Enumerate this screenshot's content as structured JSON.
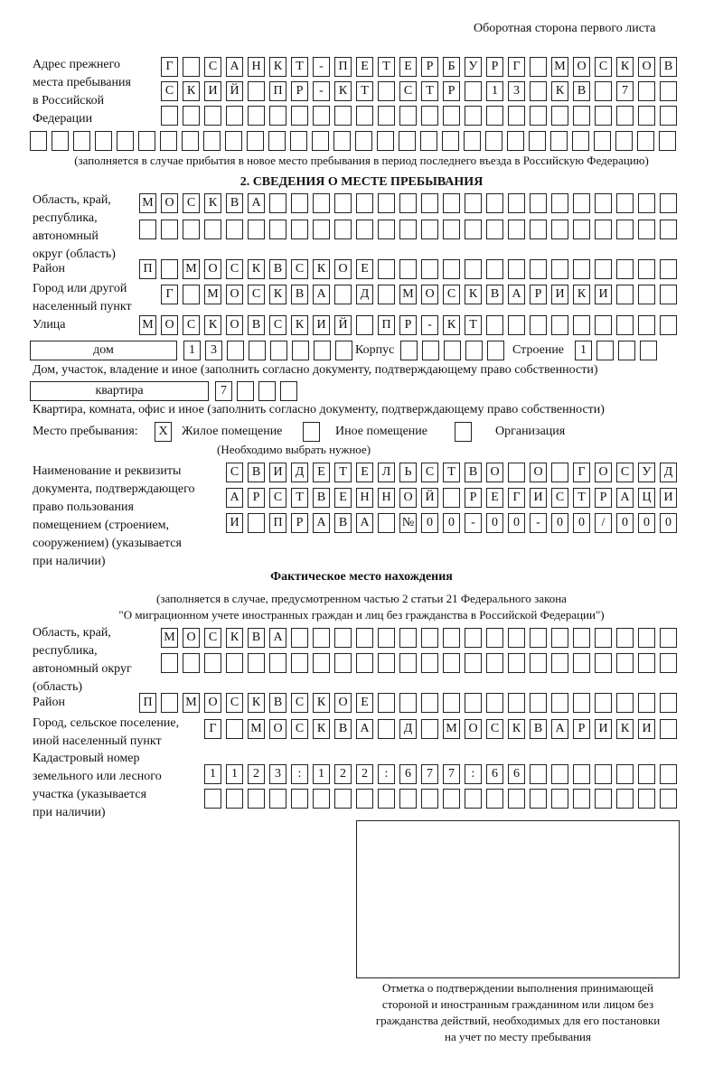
{
  "header": "Оборотная сторона первого листа",
  "prev_address": {
    "label": [
      "Адрес прежнего",
      "места пребывания",
      "в Российской",
      "Федерации"
    ],
    "rows": [
      [
        "Г",
        "",
        "С",
        "А",
        "Н",
        "К",
        "Т",
        "-",
        "П",
        "Е",
        "Т",
        "Е",
        "Р",
        "Б",
        "У",
        "Р",
        "Г",
        "",
        "М",
        "О",
        "С",
        "К",
        "О",
        "В"
      ],
      [
        "С",
        "К",
        "И",
        "Й",
        "",
        "П",
        "Р",
        "-",
        "К",
        "Т",
        "",
        "С",
        "Т",
        "Р",
        "",
        "1",
        "3",
        "",
        "К",
        "В",
        "",
        "7",
        "",
        ""
      ],
      [
        "",
        "",
        "",
        "",
        "",
        "",
        "",
        "",
        "",
        "",
        "",
        "",
        "",
        "",
        "",
        "",
        "",
        "",
        "",
        "",
        "",
        "",
        "",
        ""
      ],
      [
        "",
        "",
        "",
        "",
        "",
        "",
        "",
        "",
        "",
        "",
        "",
        "",
        "",
        "",
        "",
        "",
        "",
        "",
        "",
        "",
        "",
        "",
        "",
        "",
        "",
        "",
        "",
        "",
        "",
        ""
      ]
    ],
    "note": "(заполняется в случае прибытия в новое место пребывания в период последнего въезда в Российскую Федерацию)"
  },
  "section2": {
    "title": "2. СВЕДЕНИЯ О МЕСТЕ ПРЕБЫВАНИЯ",
    "region_label": [
      "Область, край,",
      "республика,",
      "автономный",
      "округ (область)"
    ],
    "region_rows": [
      [
        "М",
        "О",
        "С",
        "К",
        "В",
        "А",
        "",
        "",
        "",
        "",
        "",
        "",
        "",
        "",
        "",
        "",
        "",
        "",
        "",
        "",
        "",
        "",
        "",
        "",
        ""
      ],
      [
        "",
        "",
        "",
        "",
        "",
        "",
        "",
        "",
        "",
        "",
        "",
        "",
        "",
        "",
        "",
        "",
        "",
        "",
        "",
        "",
        "",
        "",
        "",
        "",
        ""
      ]
    ],
    "district_label": "Район",
    "district_row": [
      "П",
      "",
      "М",
      "О",
      "С",
      "К",
      "В",
      "С",
      "К",
      "О",
      "Е",
      "",
      "",
      "",
      "",
      "",
      "",
      "",
      "",
      "",
      "",
      "",
      "",
      "",
      ""
    ],
    "city_label": [
      "Город или другой",
      "населенный пункт"
    ],
    "city_row": [
      "Г",
      "",
      "М",
      "О",
      "С",
      "К",
      "В",
      "А",
      "",
      "Д",
      "",
      "М",
      "О",
      "С",
      "К",
      "В",
      "А",
      "Р",
      "И",
      "К",
      "И",
      "",
      "",
      ""
    ],
    "street_label": "Улица",
    "street_row": [
      "М",
      "О",
      "С",
      "К",
      "О",
      "В",
      "С",
      "К",
      "И",
      "Й",
      "",
      "П",
      "Р",
      "-",
      "К",
      "Т",
      "",
      "",
      "",
      "",
      "",
      "",
      "",
      "",
      ""
    ],
    "house_type": "дом",
    "house_cells": [
      "1",
      "3",
      "",
      "",
      "",
      "",
      "",
      ""
    ],
    "korpus_label": "Корпус",
    "korpus_cells": [
      "",
      "",
      "",
      "",
      ""
    ],
    "building_label": "Строение",
    "building_cells": [
      "1",
      "",
      "",
      ""
    ],
    "house_note": "Дом, участок, владение и иное (заполнить согласно документу, подтверждающему право собственности)",
    "flat_type": "квартира",
    "flat_cells": [
      "7",
      "",
      "",
      ""
    ],
    "flat_note": "Квартира, комната, офис и иное (заполнить согласно документу, подтверждающему право собственности)",
    "stay_label": "Место пребывания:",
    "stay_options": [
      {
        "mark": "X",
        "label": "Жилое помещение",
        "checked": true
      },
      {
        "mark": "",
        "label": "Иное помещение",
        "checked": false
      },
      {
        "mark": "",
        "label": "Организация",
        "checked": false
      }
    ],
    "stay_note": "(Необходимо выбрать нужное)",
    "doc_label": [
      "Наименование и реквизиты",
      "документа, подтверждающего",
      "право пользования",
      "помещением (строением,",
      "сооружением) (указывается",
      "при наличии)"
    ],
    "doc_rows": [
      [
        "С",
        "В",
        "И",
        "Д",
        "Е",
        "Т",
        "Е",
        "Л",
        "Ь",
        "С",
        "Т",
        "В",
        "О",
        "",
        "О",
        "",
        "Г",
        "О",
        "С",
        "У",
        "Д"
      ],
      [
        "А",
        "Р",
        "С",
        "Т",
        "В",
        "Е",
        "Н",
        "Н",
        "О",
        "Й",
        "",
        "Р",
        "Е",
        "Г",
        "И",
        "С",
        "Т",
        "Р",
        "А",
        "Ц",
        "И"
      ],
      [
        "И",
        "",
        "П",
        "Р",
        "А",
        "В",
        "А",
        "",
        "№",
        "0",
        "0",
        "-",
        "0",
        "0",
        "-",
        "0",
        "0",
        "/",
        "0",
        "0",
        "0"
      ]
    ]
  },
  "actual": {
    "title": "Фактическое место нахождения",
    "note": [
      "(заполняется в случае, предусмотренном частью 2 статьи 21 Федерального закона",
      "\"О миграционном учете иностранных граждан и лиц без гражданства в Российской Федерации\")"
    ],
    "region_label": [
      "Область, край,",
      "республика,",
      "автономный округ",
      "(область)"
    ],
    "region_rows": [
      [
        "М",
        "О",
        "С",
        "К",
        "В",
        "А",
        "",
        "",
        "",
        "",
        "",
        "",
        "",
        "",
        "",
        "",
        "",
        "",
        "",
        "",
        "",
        "",
        "",
        ""
      ],
      [
        "",
        "",
        "",
        "",
        "",
        "",
        "",
        "",
        "",
        "",
        "",
        "",
        "",
        "",
        "",
        "",
        "",
        "",
        "",
        "",
        "",
        "",
        "",
        ""
      ]
    ],
    "district_label": "Район",
    "district_row": [
      "П",
      "",
      "М",
      "О",
      "С",
      "К",
      "В",
      "С",
      "К",
      "О",
      "Е",
      "",
      "",
      "",
      "",
      "",
      "",
      "",
      "",
      "",
      "",
      "",
      "",
      "",
      ""
    ],
    "city_label": [
      "Город, сельское поселение,",
      "иной населенный пункт"
    ],
    "city_row": [
      "Г",
      "",
      "М",
      "О",
      "С",
      "К",
      "В",
      "А",
      "",
      "Д",
      "",
      "М",
      "О",
      "С",
      "К",
      "В",
      "А",
      "Р",
      "И",
      "К",
      "И",
      ""
    ],
    "cadastral_label": [
      "Кадастровый номер",
      "земельного или лесного",
      "участка (указывается",
      "при наличии)"
    ],
    "cadastral_rows": [
      [
        "1",
        "1",
        "2",
        "3",
        ":",
        "1",
        "2",
        "2",
        ":",
        "6",
        "7",
        "7",
        ":",
        "6",
        "6",
        "",
        "",
        "",
        "",
        "",
        "",
        ""
      ],
      [
        "",
        "",
        "",
        "",
        "",
        "",
        "",
        "",
        "",
        "",
        "",
        "",
        "",
        "",
        "",
        "",
        "",
        "",
        "",
        "",
        "",
        ""
      ]
    ]
  },
  "confirmation_caption": [
    "Отметка о подтверждении выполнения принимающей",
    "стороной и иностранным гражданином или лицом без",
    "гражданства действий, необходимых для его постановки",
    "на учет по месту пребывания"
  ]
}
